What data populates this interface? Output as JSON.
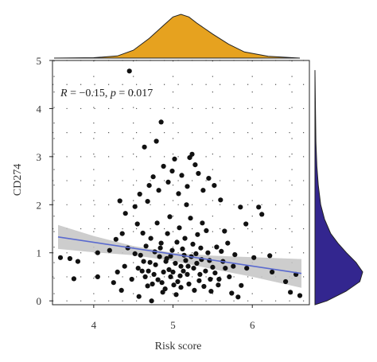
{
  "chart_data": {
    "type": "scatter",
    "xlabel": "Risk score",
    "ylabel": "CD274",
    "xlim": [
      3.48,
      6.72
    ],
    "ylim": [
      -0.08,
      5.0
    ],
    "x_ticks": [
      4,
      5,
      6
    ],
    "y_ticks": [
      0,
      1,
      2,
      3,
      4,
      5
    ],
    "grid": "dotted",
    "annotation": {
      "r_symbol": "R",
      "r_text": " = −0.15, ",
      "p_symbol": "p",
      "p_text": " = 0.017"
    },
    "regression": {
      "x": [
        3.55,
        6.62
      ],
      "y": [
        1.33,
        0.57
      ]
    },
    "confidence_band": {
      "x": [
        3.55,
        4.0,
        4.5,
        5.0,
        5.5,
        6.0,
        6.62
      ],
      "upper": [
        1.58,
        1.35,
        1.14,
        1.0,
        0.94,
        0.91,
        0.87
      ],
      "lower": [
        1.08,
        1.01,
        0.95,
        0.83,
        0.66,
        0.5,
        0.27
      ]
    },
    "colors": {
      "points": "#111111",
      "line": "#5a6acf",
      "band": "#c4c4c4",
      "top_density": "#e6a21f",
      "right_density": "#33268f"
    },
    "top_density": {
      "x": [
        3.5,
        4.0,
        4.3,
        4.5,
        4.7,
        4.9,
        5.0,
        5.1,
        5.2,
        5.3,
        5.5,
        5.7,
        5.9,
        6.2,
        6.6
      ],
      "d": [
        0.0,
        0.01,
        0.05,
        0.18,
        0.45,
        0.78,
        0.94,
        1.0,
        0.94,
        0.8,
        0.55,
        0.32,
        0.14,
        0.04,
        0.0
      ]
    },
    "right_density": {
      "y": [
        -0.08,
        0.0,
        0.2,
        0.4,
        0.6,
        0.8,
        1.0,
        1.2,
        1.4,
        1.7,
        2.0,
        2.4,
        2.8,
        3.3,
        4.0,
        4.8
      ],
      "d": [
        0.0,
        0.25,
        0.65,
        0.94,
        1.0,
        0.86,
        0.66,
        0.48,
        0.33,
        0.2,
        0.12,
        0.07,
        0.04,
        0.02,
        0.01,
        0.0
      ]
    },
    "points": [
      [
        4.45,
        4.78
      ],
      [
        4.85,
        3.72
      ],
      [
        4.79,
        3.32
      ],
      [
        4.64,
        3.2
      ],
      [
        5.24,
        3.05
      ],
      [
        5.21,
        2.98
      ],
      [
        5.02,
        2.95
      ],
      [
        4.99,
        2.7
      ],
      [
        5.11,
        2.61
      ],
      [
        4.75,
        2.58
      ],
      [
        5.45,
        2.55
      ],
      [
        5.32,
        2.65
      ],
      [
        5.28,
        2.83
      ],
      [
        4.88,
        2.8
      ],
      [
        4.7,
        2.4
      ],
      [
        4.58,
        2.22
      ],
      [
        4.68,
        2.07
      ],
      [
        4.82,
        2.3
      ],
      [
        4.94,
        2.47
      ],
      [
        5.07,
        2.23
      ],
      [
        5.18,
        2.38
      ],
      [
        5.38,
        2.3
      ],
      [
        5.52,
        2.4
      ],
      [
        5.6,
        2.1
      ],
      [
        5.85,
        1.95
      ],
      [
        6.08,
        1.95
      ],
      [
        6.12,
        1.8
      ],
      [
        5.92,
        1.6
      ],
      [
        4.4,
        1.82
      ],
      [
        4.33,
        2.08
      ],
      [
        4.52,
        1.96
      ],
      [
        4.36,
        1.4
      ],
      [
        4.28,
        1.28
      ],
      [
        4.2,
        1.05
      ],
      [
        4.05,
        1.0
      ],
      [
        3.8,
        0.82
      ],
      [
        3.7,
        0.88
      ],
      [
        3.58,
        0.9
      ],
      [
        3.75,
        0.46
      ],
      [
        4.05,
        0.5
      ],
      [
        4.25,
        0.38
      ],
      [
        4.35,
        0.22
      ],
      [
        4.57,
        0.09
      ],
      [
        4.61,
        0.62
      ],
      [
        4.68,
        0.31
      ],
      [
        4.73,
        0.0
      ],
      [
        4.8,
        1.62
      ],
      [
        4.85,
        1.2
      ],
      [
        4.91,
        0.82
      ],
      [
        4.97,
        0.5
      ],
      [
        5.04,
        0.13
      ],
      [
        5.1,
        0.72
      ],
      [
        5.15,
        1.3
      ],
      [
        5.22,
        1.72
      ],
      [
        5.29,
        0.98
      ],
      [
        5.33,
        0.42
      ],
      [
        5.41,
        0.62
      ],
      [
        5.48,
        0.2
      ],
      [
        5.55,
        1.12
      ],
      [
        5.63,
        0.82
      ],
      [
        5.71,
        0.5
      ],
      [
        5.78,
        0.96
      ],
      [
        5.86,
        0.32
      ],
      [
        5.93,
        0.68
      ],
      [
        6.02,
        0.9
      ],
      [
        6.22,
        0.94
      ],
      [
        6.42,
        0.4
      ],
      [
        6.55,
        0.55
      ],
      [
        6.6,
        0.11
      ],
      [
        6.48,
        0.18
      ],
      [
        5.74,
        0.16
      ],
      [
        5.82,
        0.08
      ],
      [
        4.48,
        0.45
      ],
      [
        4.52,
        0.98
      ],
      [
        4.62,
        1.41
      ],
      [
        4.66,
        1.14
      ],
      [
        4.71,
        0.8
      ],
      [
        4.76,
        0.55
      ],
      [
        4.83,
        0.92
      ],
      [
        4.88,
        0.6
      ],
      [
        4.93,
        1.4
      ],
      [
        4.99,
        1.05
      ],
      [
        5.06,
        0.4
      ],
      [
        5.12,
        1.08
      ],
      [
        5.18,
        0.55
      ],
      [
        5.26,
        0.68
      ],
      [
        5.31,
        1.38
      ],
      [
        5.36,
        0.86
      ],
      [
        5.44,
        1.0
      ],
      [
        5.5,
        0.7
      ],
      [
        5.58,
        0.45
      ],
      [
        5.66,
        0.68
      ],
      [
        5.69,
        1.2
      ],
      [
        4.74,
        0.35
      ],
      [
        4.9,
        0.25
      ],
      [
        5.01,
        0.33
      ],
      [
        5.08,
        1.52
      ],
      [
        5.14,
        0.95
      ],
      [
        5.2,
        0.35
      ],
      [
        5.27,
        0.22
      ],
      [
        4.56,
        0.68
      ],
      [
        4.63,
        0.82
      ],
      [
        4.69,
        0.62
      ],
      [
        4.77,
        1.02
      ],
      [
        4.81,
        0.44
      ],
      [
        4.86,
        0.38
      ],
      [
        4.95,
        0.65
      ],
      [
        5.03,
        0.78
      ],
      [
        5.09,
        0.52
      ],
      [
        5.16,
        0.84
      ],
      [
        5.23,
        0.92
      ],
      [
        5.34,
        0.55
      ],
      [
        5.39,
        0.3
      ],
      [
        5.46,
        0.84
      ],
      [
        5.53,
        0.58
      ],
      [
        5.61,
        1.03
      ],
      [
        4.59,
        0.95
      ],
      [
        4.72,
        1.3
      ],
      [
        4.84,
        1.1
      ],
      [
        4.97,
        0.93
      ],
      [
        5.05,
        1.22
      ],
      [
        5.13,
        0.62
      ],
      [
        5.25,
        1.18
      ],
      [
        5.35,
        1.1
      ],
      [
        5.42,
        1.46
      ],
      [
        4.78,
        0.75
      ],
      [
        4.92,
        0.88
      ],
      [
        5.0,
        0.6
      ],
      [
        5.1,
        0.28
      ],
      [
        5.19,
        0.72
      ],
      [
        5.3,
        0.78
      ],
      [
        4.87,
        0.18
      ],
      [
        4.65,
        0.5
      ],
      [
        5.47,
        0.45
      ],
      [
        5.57,
        0.33
      ],
      [
        4.96,
        1.75
      ],
      [
        5.17,
        2.0
      ],
      [
        5.37,
        1.62
      ],
      [
        4.55,
        1.6
      ],
      [
        4.43,
        1.1
      ],
      [
        4.39,
        0.72
      ],
      [
        4.3,
        0.6
      ],
      [
        5.65,
        1.45
      ],
      [
        5.76,
        0.72
      ],
      [
        6.25,
        0.6
      ]
    ]
  }
}
